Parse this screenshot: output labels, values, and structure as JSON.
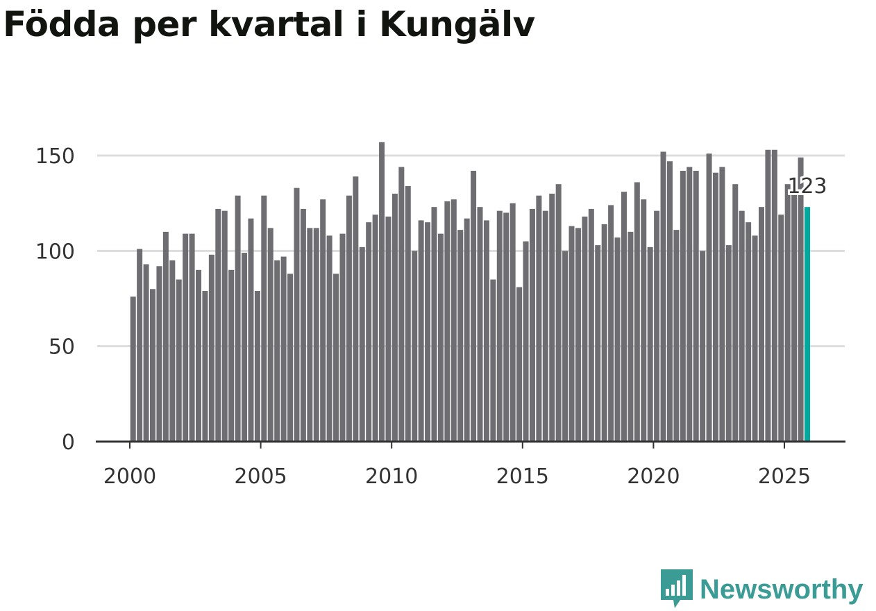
{
  "chart_data": {
    "type": "bar",
    "title": "Födda per kvartal i Kungälv",
    "xlabel": "",
    "ylabel": "",
    "ylim": [
      0,
      160
    ],
    "yticks": [
      0,
      50,
      100,
      150
    ],
    "xticks": [
      2000,
      2005,
      2010,
      2015,
      2020,
      2025
    ],
    "grid": true,
    "start_year": 2000,
    "periods_per_year": 4,
    "values": [
      76,
      101,
      93,
      80,
      92,
      110,
      95,
      85,
      109,
      109,
      90,
      79,
      98,
      122,
      121,
      90,
      129,
      99,
      117,
      79,
      129,
      112,
      95,
      97,
      88,
      133,
      122,
      112,
      112,
      127,
      108,
      88,
      109,
      129,
      139,
      102,
      115,
      119,
      157,
      118,
      130,
      144,
      134,
      100,
      116,
      115,
      123,
      109,
      126,
      127,
      111,
      117,
      142,
      123,
      116,
      85,
      121,
      120,
      125,
      81,
      105,
      122,
      129,
      121,
      130,
      135,
      100,
      113,
      112,
      118,
      122,
      103,
      114,
      124,
      107,
      131,
      110,
      136,
      127,
      102,
      121,
      152,
      147,
      111,
      142,
      144,
      142,
      100,
      151,
      141,
      144,
      103,
      135,
      121,
      115,
      108,
      123,
      153,
      153,
      119,
      135,
      130,
      149,
      123
    ],
    "highlight_label": "123",
    "colors": {
      "bar": "#6e6d72",
      "highlight": "#00a99d",
      "grid": "#dddddd",
      "axis": "#333333"
    }
  },
  "brand": {
    "name": "Newsworthy",
    "color": "#3b9b95"
  }
}
